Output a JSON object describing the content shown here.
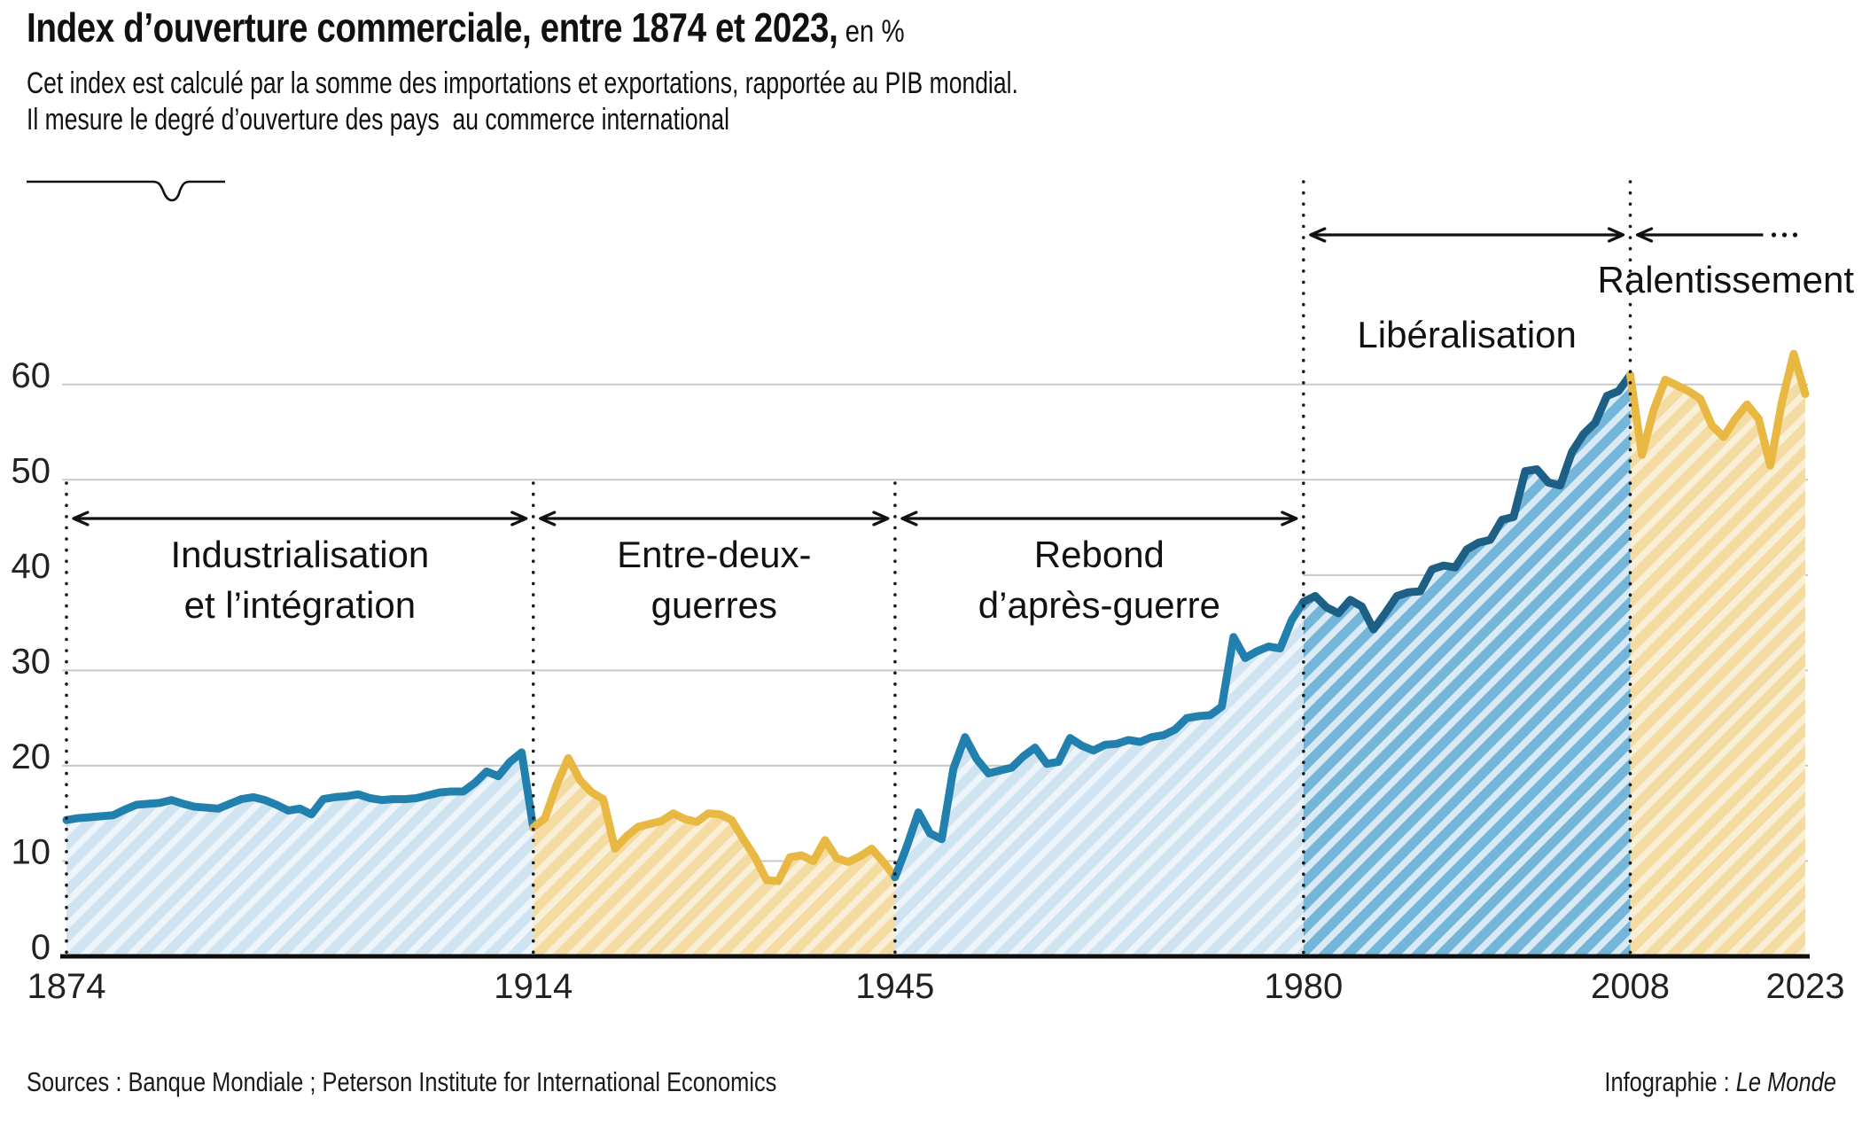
{
  "header": {
    "title_bold": "Index d’ouverture commerciale, entre 1874 et 2023,",
    "title_suffix": " en %",
    "subtitle_line1": "Cet index est calculé par la somme des importations et exportations, rapportée au PIB mondial.",
    "subtitle_line2": "Il mesure le degré d’ouverture des pays  au commerce international"
  },
  "footer": {
    "sources": "Sources : Banque Mondiale ; Peterson Institute for International Economics",
    "credit_prefix": "Infographie : ",
    "credit_name": "Le Monde"
  },
  "chart_data": {
    "type": "area",
    "title": "Index d’ouverture commerciale, entre 1874 et 2023, en %",
    "unit": "%",
    "x_start": 1874,
    "x_end": 2023,
    "ylim": [
      0,
      65
    ],
    "yticks": [
      0,
      10,
      20,
      30,
      40,
      50,
      60
    ],
    "xticks": [
      1874,
      1914,
      1945,
      1980,
      2008,
      2023
    ],
    "grid": true,
    "values": [
      14.3,
      14.5,
      14.6,
      14.7,
      14.8,
      15.4,
      15.9,
      16.0,
      16.1,
      16.4,
      16.0,
      15.7,
      15.6,
      15.5,
      16.0,
      16.5,
      16.7,
      16.4,
      15.9,
      15.3,
      15.5,
      14.9,
      16.5,
      16.7,
      16.8,
      17.0,
      16.6,
      16.4,
      16.5,
      16.5,
      16.6,
      16.9,
      17.2,
      17.3,
      17.3,
      18.2,
      19.4,
      18.9,
      20.4,
      21.4,
      13.5,
      14.5,
      18.0,
      20.8,
      18.5,
      17.2,
      16.5,
      11.3,
      12.6,
      13.6,
      13.9,
      14.2,
      15.0,
      14.4,
      14.1,
      15.0,
      14.9,
      14.3,
      12.3,
      10.4,
      8.0,
      7.9,
      10.4,
      10.6,
      10.0,
      12.2,
      10.3,
      9.9,
      10.5,
      11.3,
      9.9,
      8.3,
      11.5,
      15.1,
      12.9,
      12.3,
      19.7,
      23.0,
      20.7,
      19.2,
      19.5,
      19.8,
      21.0,
      21.9,
      20.2,
      20.4,
      22.9,
      22.1,
      21.6,
      22.2,
      22.3,
      22.7,
      22.5,
      23.0,
      23.2,
      23.8,
      25.0,
      25.2,
      25.3,
      26.2,
      33.5,
      31.3,
      32.0,
      32.5,
      32.3,
      35.3,
      37.2,
      37.8,
      36.6,
      36.0,
      37.4,
      36.7,
      34.3,
      36.0,
      37.8,
      38.2,
      38.3,
      40.6,
      41.0,
      40.8,
      42.7,
      43.4,
      43.7,
      45.8,
      46.1,
      50.9,
      51.1,
      49.7,
      49.4,
      52.9,
      54.8,
      56.0,
      58.8,
      59.3,
      61.0,
      52.6,
      57.3,
      60.5,
      59.9,
      59.3,
      58.5,
      55.7,
      54.5,
      56.4,
      57.9,
      56.4,
      51.5,
      58.2,
      63.2,
      59.0
    ],
    "periods": [
      {
        "name": "industrialisation",
        "label_lines": [
          "Industrialisation",
          "et l’intégration"
        ],
        "from": 1874,
        "to": 1914,
        "palette": "lightblue",
        "band": "lower",
        "open_ended": false
      },
      {
        "name": "entre-deux-guerres",
        "label_lines": [
          "Entre-deux-",
          "guerres"
        ],
        "from": 1914,
        "to": 1945,
        "palette": "yellow",
        "band": "lower",
        "open_ended": false
      },
      {
        "name": "rebond-apres-guerre",
        "label_lines": [
          "Rebond",
          "d’après-guerre"
        ],
        "from": 1945,
        "to": 1980,
        "palette": "lightblue",
        "band": "lower",
        "open_ended": false
      },
      {
        "name": "liberalisation",
        "label_lines": [
          "Libéralisation"
        ],
        "from": 1980,
        "to": 2008,
        "palette": "midblue",
        "band": "upper",
        "open_ended": false
      },
      {
        "name": "ralentissement",
        "label_lines": [
          "Ralentissement"
        ],
        "from": 2008,
        "to": 2023,
        "palette": "yellow",
        "band": "upper",
        "open_ended": true
      }
    ],
    "palettes": {
      "lightblue": {
        "line": "#2280ae",
        "fill": "#cfe3f1",
        "stripe": "#edf4fa"
      },
      "midblue": {
        "line": "#1d5f85",
        "fill": "#74b6d9",
        "stripe": "#d9eaf4"
      },
      "yellow": {
        "line": "#e8b842",
        "fill": "#f3dba2",
        "stripe": "#f9efd7"
      }
    },
    "grid_color": "#c9c9c9",
    "axis_color": "#0d0d0d",
    "dotted_color": "#1a1a1a",
    "annotation_color": "#111111",
    "tick_color": "#222222"
  }
}
